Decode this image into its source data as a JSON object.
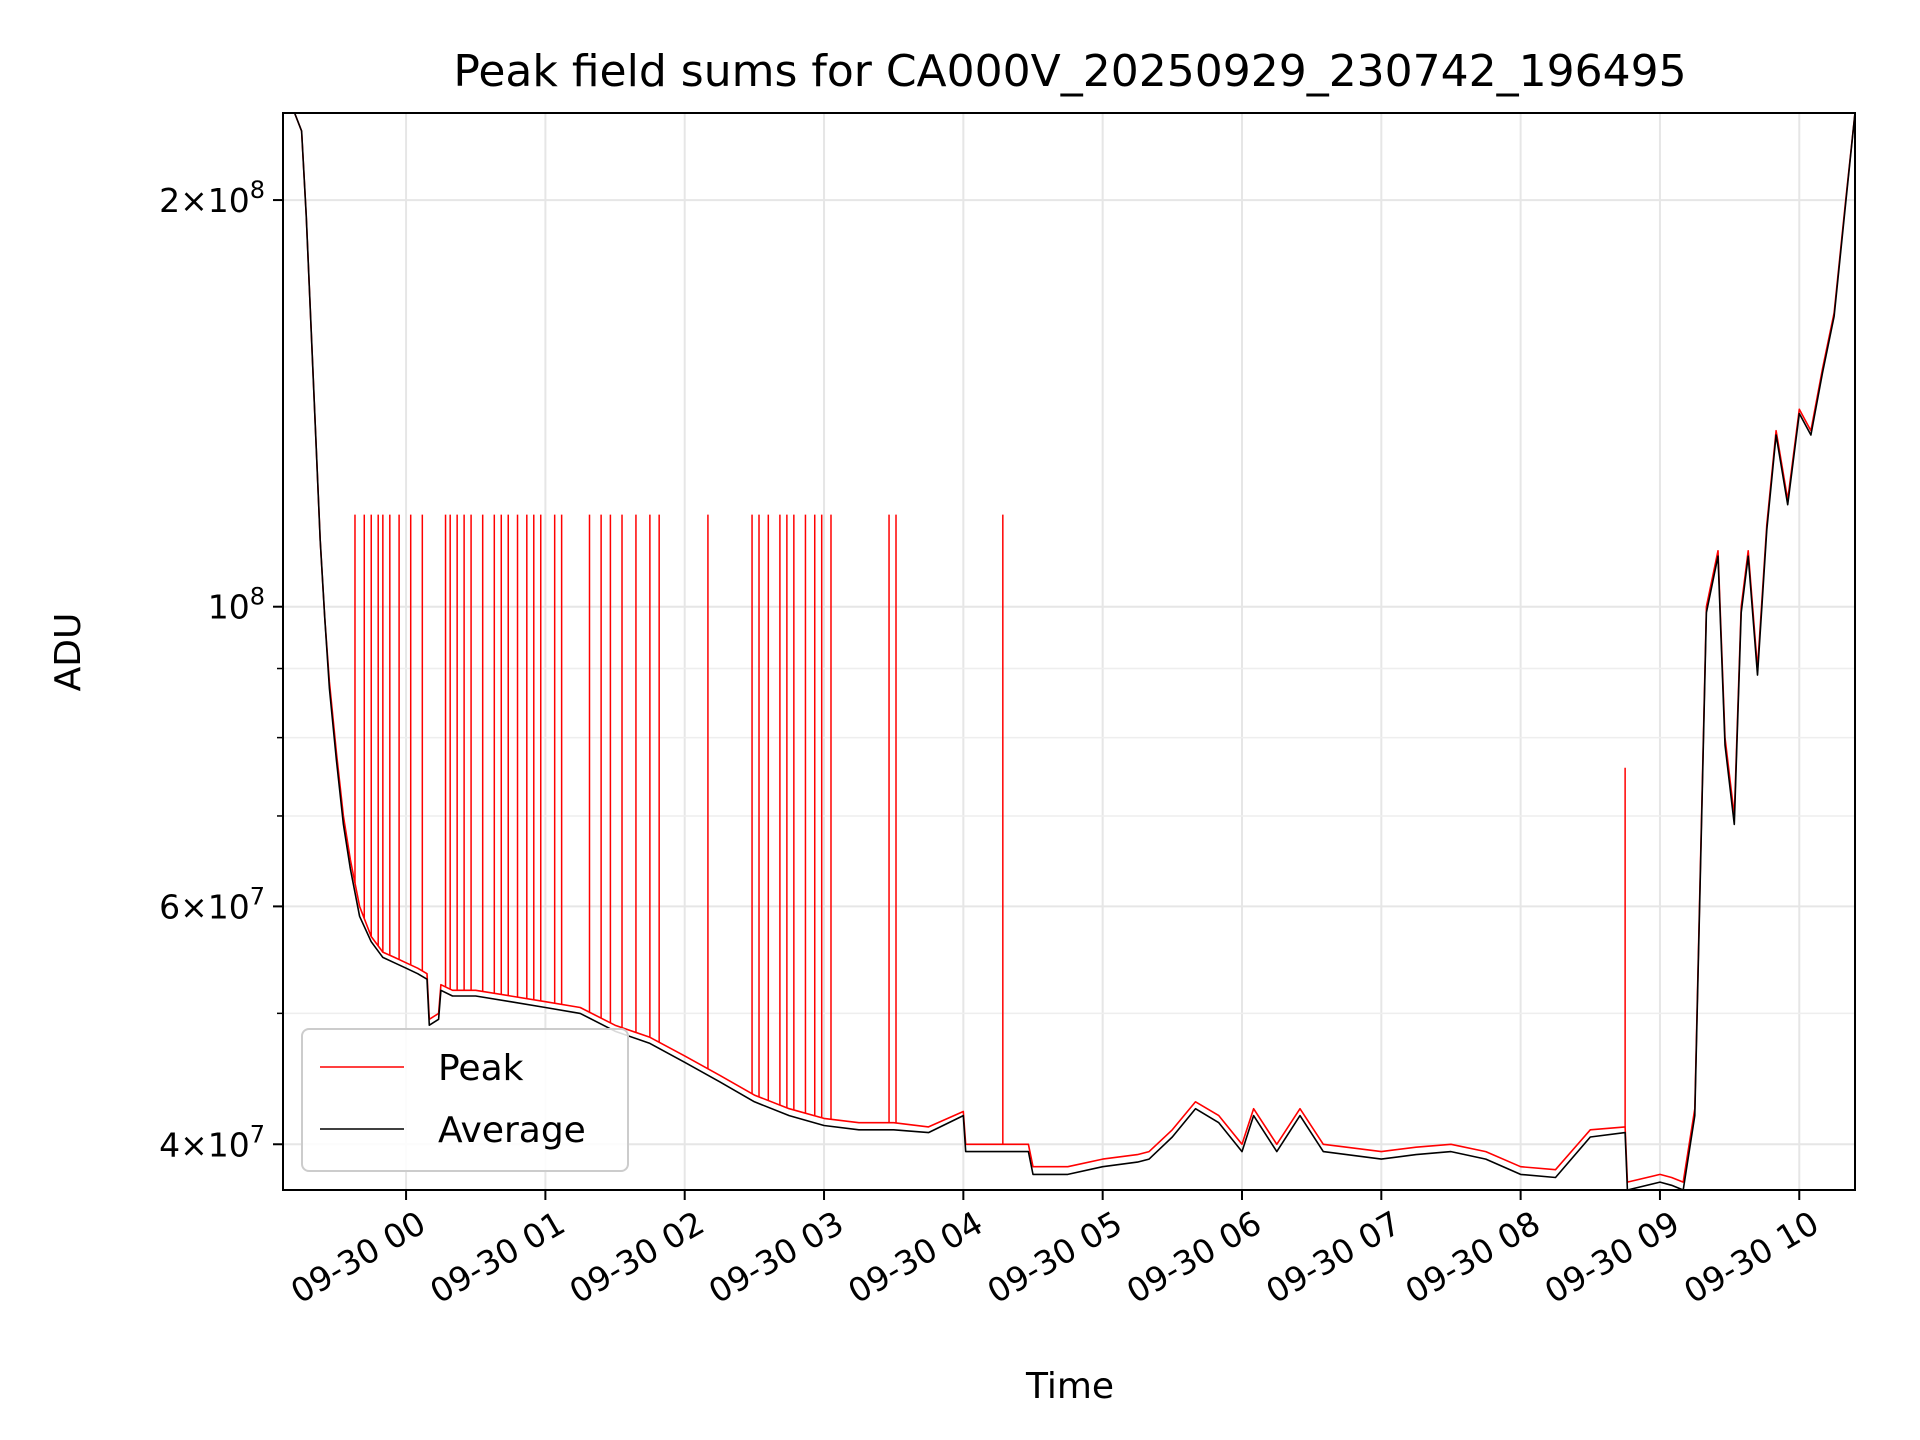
{
  "chart_data": {
    "type": "line",
    "title": "Peak field sums for CA000V_20250929_230742_196495",
    "xlabel": "Time",
    "ylabel": "ADU",
    "y_scale": "log",
    "xlim": [
      "2025-09-29 23:07",
      "2025-09-30 10:24"
    ],
    "ylim": [
      37000000,
      232000000
    ],
    "grid": true,
    "legend_position": "lower-left",
    "x_tick_labels": [
      "09-30 00",
      "09-30 01",
      "09-30 02",
      "09-30 03",
      "09-30 04",
      "09-30 05",
      "09-30 06",
      "09-30 07",
      "09-30 08",
      "09-30 09",
      "09-30 10"
    ],
    "y_tick_labels": [
      {
        "value": 40000000,
        "mantissa": "4",
        "exponent": "7"
      },
      {
        "value": 60000000,
        "mantissa": "6",
        "exponent": "7"
      },
      {
        "value": 100000000,
        "mantissa": "",
        "exponent": "8"
      },
      {
        "value": 200000000,
        "mantissa": "2",
        "exponent": "8"
      }
    ],
    "series": [
      {
        "name": "Peak",
        "color": "#ff0000",
        "x": [
          "2025-09-29 23:07",
          "2025-09-29 23:12",
          "2025-09-29 23:15",
          "2025-09-29 23:17",
          "2025-09-29 23:19",
          "2025-09-29 23:21",
          "2025-09-29 23:23",
          "2025-09-29 23:25",
          "2025-09-29 23:27",
          "2025-09-29 23:30",
          "2025-09-29 23:33",
          "2025-09-29 23:36",
          "2025-09-29 23:40",
          "2025-09-29 23:45",
          "2025-09-29 23:50",
          "2025-09-29 23:55",
          "2025-09-30 00:00",
          "2025-09-30 00:05",
          "2025-09-30 00:09",
          "2025-09-30 00:10",
          "2025-09-30 00:14",
          "2025-09-30 00:15",
          "2025-09-30 00:20",
          "2025-09-30 00:30",
          "2025-09-30 00:45",
          "2025-09-30 01:00",
          "2025-09-30 01:15",
          "2025-09-30 01:30",
          "2025-09-30 01:45",
          "2025-09-30 02:00",
          "2025-09-30 02:15",
          "2025-09-30 02:30",
          "2025-09-30 02:45",
          "2025-09-30 03:00",
          "2025-09-30 03:15",
          "2025-09-30 03:30",
          "2025-09-30 03:45",
          "2025-09-30 04:00",
          "2025-09-30 04:01",
          "2025-09-30 04:15",
          "2025-09-30 04:28",
          "2025-09-30 04:30",
          "2025-09-30 04:45",
          "2025-09-30 05:00",
          "2025-09-30 05:15",
          "2025-09-30 05:20",
          "2025-09-30 05:30",
          "2025-09-30 05:40",
          "2025-09-30 05:50",
          "2025-09-30 06:00",
          "2025-09-30 06:05",
          "2025-09-30 06:15",
          "2025-09-30 06:25",
          "2025-09-30 06:35",
          "2025-09-30 06:45",
          "2025-09-30 07:00",
          "2025-09-30 07:15",
          "2025-09-30 07:30",
          "2025-09-30 07:45",
          "2025-09-30 08:00",
          "2025-09-30 08:15",
          "2025-09-30 08:30",
          "2025-09-30 08:45",
          "2025-09-30 08:46",
          "2025-09-30 09:00",
          "2025-09-30 09:05",
          "2025-09-30 09:10",
          "2025-09-30 09:15",
          "2025-09-30 09:20",
          "2025-09-30 09:25",
          "2025-09-30 09:28",
          "2025-09-30 09:32",
          "2025-09-30 09:35",
          "2025-09-30 09:38",
          "2025-09-30 09:42",
          "2025-09-30 09:46",
          "2025-09-30 09:50",
          "2025-09-30 09:55",
          "2025-09-30 10:00",
          "2025-09-30 10:05",
          "2025-09-30 10:10",
          "2025-09-30 10:15",
          "2025-09-30 10:20",
          "2025-09-30 10:24"
        ],
        "y": [
          232000000,
          232000000,
          225000000,
          195000000,
          162000000,
          135000000,
          112000000,
          98000000,
          88000000,
          78000000,
          70000000,
          65000000,
          60000000,
          57000000,
          55500000,
          55000000,
          54500000,
          54000000,
          53500000,
          49500000,
          50000000,
          52500000,
          52000000,
          52000000,
          51500000,
          51000000,
          50500000,
          49000000,
          48000000,
          46500000,
          45000000,
          43500000,
          42500000,
          41800000,
          41500000,
          41500000,
          41200000,
          42300000,
          40000000,
          40000000,
          40000000,
          38500000,
          38500000,
          39000000,
          39300000,
          39500000,
          41000000,
          43000000,
          42000000,
          40000000,
          42500000,
          40000000,
          42500000,
          40000000,
          39800000,
          39500000,
          39800000,
          40000000,
          39500000,
          38500000,
          38300000,
          41000000,
          41200000,
          37500000,
          38000000,
          37800000,
          37500000,
          42500000,
          100000000,
          110000000,
          80000000,
          70000000,
          100000000,
          110000000,
          90000000,
          115000000,
          135000000,
          120000000,
          140000000,
          135000000,
          150000000,
          165000000,
          200000000,
          232000000
        ]
      },
      {
        "name": "Average",
        "color": "#000000",
        "x": [
          "2025-09-29 23:07",
          "2025-09-29 23:12",
          "2025-09-29 23:15",
          "2025-09-29 23:17",
          "2025-09-29 23:19",
          "2025-09-29 23:21",
          "2025-09-29 23:23",
          "2025-09-29 23:25",
          "2025-09-29 23:27",
          "2025-09-29 23:30",
          "2025-09-29 23:33",
          "2025-09-29 23:36",
          "2025-09-29 23:40",
          "2025-09-29 23:45",
          "2025-09-29 23:50",
          "2025-09-29 23:55",
          "2025-09-30 00:00",
          "2025-09-30 00:05",
          "2025-09-30 00:09",
          "2025-09-30 00:10",
          "2025-09-30 00:14",
          "2025-09-30 00:15",
          "2025-09-30 00:20",
          "2025-09-30 00:30",
          "2025-09-30 00:45",
          "2025-09-30 01:00",
          "2025-09-30 01:15",
          "2025-09-30 01:30",
          "2025-09-30 01:45",
          "2025-09-30 02:00",
          "2025-09-30 02:15",
          "2025-09-30 02:30",
          "2025-09-30 02:45",
          "2025-09-30 03:00",
          "2025-09-30 03:15",
          "2025-09-30 03:30",
          "2025-09-30 03:45",
          "2025-09-30 04:00",
          "2025-09-30 04:01",
          "2025-09-30 04:15",
          "2025-09-30 04:28",
          "2025-09-30 04:30",
          "2025-09-30 04:45",
          "2025-09-30 05:00",
          "2025-09-30 05:15",
          "2025-09-30 05:20",
          "2025-09-30 05:30",
          "2025-09-30 05:40",
          "2025-09-30 05:50",
          "2025-09-30 06:00",
          "2025-09-30 06:05",
          "2025-09-30 06:15",
          "2025-09-30 06:25",
          "2025-09-30 06:35",
          "2025-09-30 06:45",
          "2025-09-30 07:00",
          "2025-09-30 07:15",
          "2025-09-30 07:30",
          "2025-09-30 07:45",
          "2025-09-30 08:00",
          "2025-09-30 08:15",
          "2025-09-30 08:30",
          "2025-09-30 08:45",
          "2025-09-30 08:46",
          "2025-09-30 09:00",
          "2025-09-30 09:05",
          "2025-09-30 09:10",
          "2025-09-30 09:15",
          "2025-09-30 09:20",
          "2025-09-30 09:25",
          "2025-09-30 09:28",
          "2025-09-30 09:32",
          "2025-09-30 09:35",
          "2025-09-30 09:38",
          "2025-09-30 09:42",
          "2025-09-30 09:46",
          "2025-09-30 09:50",
          "2025-09-30 09:55",
          "2025-09-30 10:00",
          "2025-09-30 10:05",
          "2025-09-30 10:10",
          "2025-09-30 10:15",
          "2025-09-30 10:20",
          "2025-09-30 10:24"
        ],
        "y": [
          232000000,
          232000000,
          225000000,
          195000000,
          162000000,
          135000000,
          112000000,
          98000000,
          87000000,
          77000000,
          69000000,
          64000000,
          59000000,
          56500000,
          55000000,
          54500000,
          54000000,
          53500000,
          53000000,
          49000000,
          49500000,
          52000000,
          51500000,
          51500000,
          51000000,
          50500000,
          50000000,
          48500000,
          47500000,
          46000000,
          44500000,
          43000000,
          42000000,
          41300000,
          41000000,
          41000000,
          40800000,
          42000000,
          39500000,
          39500000,
          39500000,
          38000000,
          38000000,
          38500000,
          38800000,
          39000000,
          40500000,
          42500000,
          41500000,
          39500000,
          42000000,
          39500000,
          42000000,
          39500000,
          39300000,
          39000000,
          39300000,
          39500000,
          39000000,
          38000000,
          37800000,
          40500000,
          40800000,
          37000000,
          37500000,
          37300000,
          37000000,
          42000000,
          99000000,
          109000000,
          79000000,
          69000000,
          99000000,
          109000000,
          89000000,
          114000000,
          134000000,
          119000000,
          139000000,
          134000000,
          149000000,
          164000000,
          199000000,
          232000000
        ]
      }
    ],
    "peak_spikes": {
      "color": "#ff0000",
      "y": 117000000,
      "x": [
        "2025-09-29 23:38",
        "2025-09-29 23:42",
        "2025-09-29 23:45",
        "2025-09-29 23:48",
        "2025-09-29 23:50",
        "2025-09-29 23:53",
        "2025-09-29 23:57",
        "2025-09-30 00:02",
        "2025-09-30 00:07",
        "2025-09-30 00:17",
        "2025-09-30 00:19",
        "2025-09-30 00:22",
        "2025-09-30 00:25",
        "2025-09-30 00:28",
        "2025-09-30 00:33",
        "2025-09-30 00:38",
        "2025-09-30 00:41",
        "2025-09-30 00:44",
        "2025-09-30 00:48",
        "2025-09-30 00:52",
        "2025-09-30 00:55",
        "2025-09-30 00:58",
        "2025-09-30 01:04",
        "2025-09-30 01:07",
        "2025-09-30 01:19",
        "2025-09-30 01:24",
        "2025-09-30 01:28",
        "2025-09-30 01:33",
        "2025-09-30 01:39",
        "2025-09-30 01:45",
        "2025-09-30 01:49",
        "2025-09-30 02:10",
        "2025-09-30 02:29",
        "2025-09-30 02:32",
        "2025-09-30 02:36",
        "2025-09-30 02:41",
        "2025-09-30 02:44",
        "2025-09-30 02:47",
        "2025-09-30 02:52",
        "2025-09-30 02:56",
        "2025-09-30 02:59",
        "2025-09-30 03:03",
        "2025-09-30 03:28",
        "2025-09-30 03:31",
        "2025-09-30 04:17"
      ]
    },
    "peak_spike_secondary": {
      "x": "2025-09-30 08:45",
      "y": 76000000
    }
  }
}
